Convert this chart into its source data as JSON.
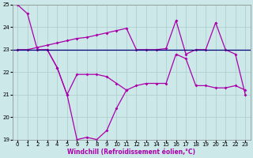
{
  "xlabel": "Windchill (Refroidissement éolien,°C)",
  "bg_color": "#cce8e8",
  "line_color": "#aa00aa",
  "hline_color": "#000077",
  "grid_color": "#aacccc",
  "s1_x": [
    0,
    1,
    2,
    3,
    4,
    5,
    6,
    7,
    8,
    9,
    10,
    11
  ],
  "s1_y": [
    25.0,
    24.6,
    23.0,
    23.0,
    22.2,
    21.0,
    19.0,
    19.1,
    19.0,
    19.4,
    20.4,
    21.2
  ],
  "s2_x": [
    0,
    1,
    2,
    3,
    4,
    5,
    6,
    7,
    8,
    9,
    10,
    11,
    12,
    13,
    14,
    15,
    16,
    17,
    18,
    19,
    20,
    21,
    22,
    23
  ],
  "s2_y": [
    23.0,
    23.0,
    23.1,
    23.2,
    23.3,
    23.4,
    23.5,
    23.55,
    23.65,
    23.75,
    23.85,
    23.95,
    23.0,
    23.0,
    23.0,
    23.05,
    24.3,
    22.8,
    23.0,
    23.0,
    24.2,
    23.0,
    22.8,
    21.0
  ],
  "s3_x": [
    3,
    4,
    5,
    6,
    7,
    8,
    9,
    10,
    11,
    12,
    13,
    14,
    15,
    16,
    17,
    18,
    19,
    20,
    21,
    22,
    23
  ],
  "s3_y": [
    23.0,
    22.2,
    21.0,
    21.9,
    21.9,
    21.9,
    21.8,
    21.5,
    21.2,
    21.4,
    21.5,
    21.5,
    21.5,
    22.8,
    22.6,
    21.4,
    21.4,
    21.3,
    21.3,
    21.4,
    21.2
  ],
  "hline_y": 23.0,
  "ylim": [
    19.0,
    25.0
  ],
  "xlim": [
    0,
    23
  ],
  "yticks": [
    19,
    20,
    21,
    22,
    23,
    24,
    25
  ],
  "xticks": [
    0,
    1,
    2,
    3,
    4,
    5,
    6,
    7,
    8,
    9,
    10,
    11,
    12,
    13,
    14,
    15,
    16,
    17,
    18,
    19,
    20,
    21,
    22,
    23
  ],
  "xlabel_fontsize": 5.5,
  "tick_fontsize": 5
}
